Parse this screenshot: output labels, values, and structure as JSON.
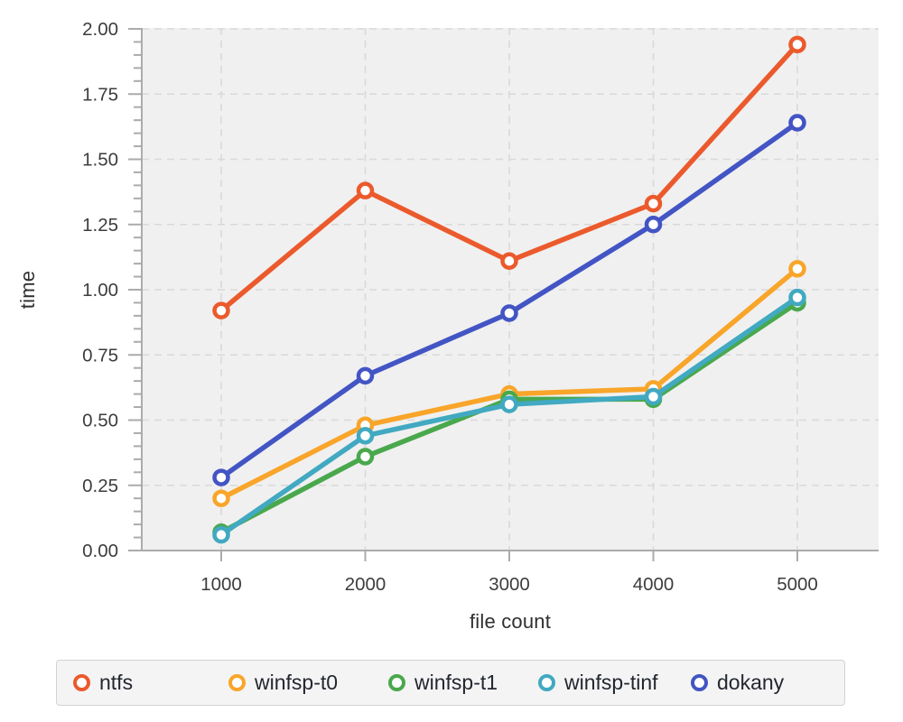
{
  "chart_data": {
    "type": "line",
    "title": "",
    "xlabel": "file count",
    "ylabel": "time",
    "x": [
      1000,
      2000,
      3000,
      4000,
      5000
    ],
    "x_tick_labels": [
      "1000",
      "2000",
      "3000",
      "4000",
      "5000"
    ],
    "y_tick_labels": [
      "0.00",
      "0.25",
      "0.50",
      "0.75",
      "1.00",
      "1.25",
      "1.50",
      "1.75",
      "2.00"
    ],
    "ylim": [
      0,
      2
    ],
    "y_major_tick_step": 0.25,
    "y_minor_tick_step": 0.05,
    "grid": true,
    "grid_style": "dashed",
    "legend_position": "bottom",
    "marker": "open-circle",
    "series": [
      {
        "name": "ntfs",
        "color": "#eb5a2d",
        "values": [
          0.92,
          1.38,
          1.11,
          1.33,
          1.94
        ]
      },
      {
        "name": "winfsp-t0",
        "color": "#f8a52a",
        "values": [
          0.2,
          0.48,
          0.6,
          0.62,
          1.08
        ]
      },
      {
        "name": "winfsp-t1",
        "color": "#49a84c",
        "values": [
          0.07,
          0.36,
          0.58,
          0.58,
          0.95
        ]
      },
      {
        "name": "winfsp-tinf",
        "color": "#41a9c1",
        "values": [
          0.06,
          0.44,
          0.56,
          0.59,
          0.97
        ]
      },
      {
        "name": "dokany",
        "color": "#4355c4",
        "values": [
          0.28,
          0.67,
          0.91,
          1.25,
          1.64
        ]
      }
    ],
    "colors": {
      "plot_background": "#f0f0f0",
      "gridline": "#d9d9d9",
      "axis": "#ababab",
      "tick_label": "#3d3d3d",
      "marker_fill": "#ffffff"
    }
  }
}
